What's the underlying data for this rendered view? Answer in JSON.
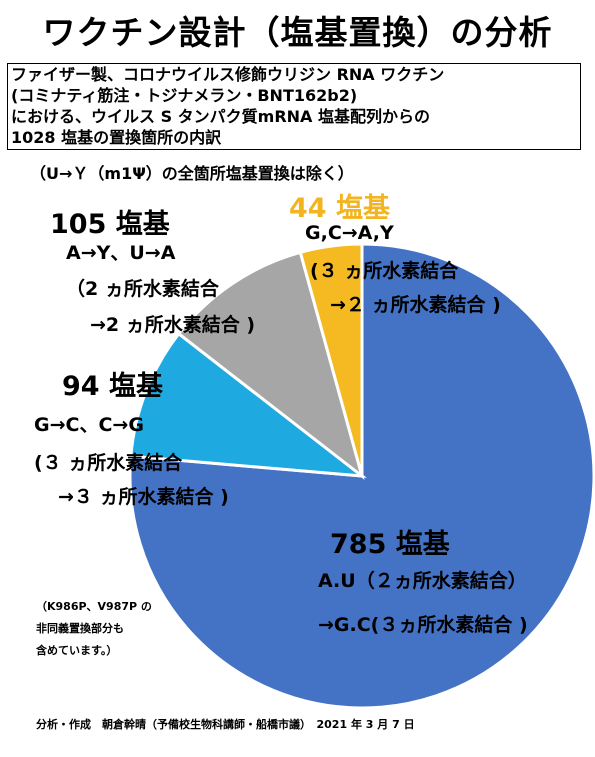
{
  "title": "ワクチン設計（塩基置換）の分析",
  "description": [
    "ファイザー製、コロナウイルス修飾ウリジン RNA ワクチン",
    "(コミナティ筋注・トジナメラン・BNT162b2)",
    "における、ウイルス S タンパク質mRNA 塩基配列からの",
    "1028 塩基の置換箇所の内訳"
  ],
  "exclusion_note": "（U→Ｙ（m1Ψ）の全箇所塩基置換は除く）",
  "colors": {
    "au_to_gc": "#4472C4",
    "gc_to_cg": "#1FA9E1",
    "ay_ua": "#A6A6A6",
    "gc_to_ay": "#F5B921"
  },
  "chart_data": {
    "type": "pie",
    "total": 1028,
    "slices": [
      {
        "value": 785,
        "count_label": "785 塩基",
        "substitution": "A.U（２ヵ所水素結合）",
        "detail": [
          "→G.C(３ヵ所水素結合 )"
        ]
      },
      {
        "value": 94,
        "count_label": "94 塩基",
        "substitution": "G→C、C→G",
        "detail": [
          "(３ ヵ所水素結合",
          "→３ ヵ所水素結合 )"
        ]
      },
      {
        "value": 105,
        "count_label": "105 塩基",
        "substitution": "A→Y、U→A",
        "detail": [
          "（2 ヵ所水素結合",
          "→2 ヵ所水素結合 )"
        ]
      },
      {
        "value": 44,
        "count_label": "44 塩基",
        "substitution": "G,C→A,Y",
        "detail": [
          "(３ ヵ所水素結合",
          "→２ ヵ所水素結合 )"
        ]
      }
    ]
  },
  "note": [
    "（K986P、V987P の",
    "非同義置換部分も",
    "含めています。）"
  ],
  "footer": "分析・作成　朝倉幹晴（予備校生物科講師・船橋市議）　2021 年 3 月 7 日"
}
